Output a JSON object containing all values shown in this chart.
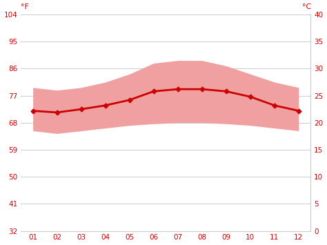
{
  "months": [
    1,
    2,
    3,
    4,
    5,
    6,
    7,
    8,
    9,
    10,
    11,
    12
  ],
  "month_labels": [
    "01",
    "02",
    "03",
    "04",
    "05",
    "06",
    "07",
    "08",
    "09",
    "10",
    "11",
    "12"
  ],
  "mean_temp_c": [
    22.2,
    21.9,
    22.5,
    23.2,
    24.2,
    25.8,
    26.2,
    26.2,
    25.8,
    24.8,
    23.2,
    22.2
  ],
  "max_temp_c": [
    26.5,
    26.0,
    26.5,
    27.5,
    29.0,
    31.0,
    31.5,
    31.5,
    30.5,
    29.0,
    27.5,
    26.5
  ],
  "min_temp_c": [
    18.5,
    18.0,
    18.5,
    19.0,
    19.5,
    19.8,
    20.0,
    20.0,
    19.8,
    19.5,
    19.0,
    18.5
  ],
  "line_color": "#cc0000",
  "band_color": "#f0a0a0",
  "background_color": "#ffffff",
  "grid_color": "#cccccc",
  "tick_color": "#cc0000",
  "ylim_c": [
    0,
    40
  ],
  "yticks_c": [
    0,
    5,
    10,
    15,
    20,
    25,
    30,
    35,
    40
  ],
  "yticks_f": [
    32,
    41,
    50,
    59,
    68,
    77,
    86,
    95,
    104
  ],
  "ylabel_left": "°F",
  "ylabel_right": "°C",
  "figsize": [
    4.74,
    3.55
  ],
  "dpi": 100
}
